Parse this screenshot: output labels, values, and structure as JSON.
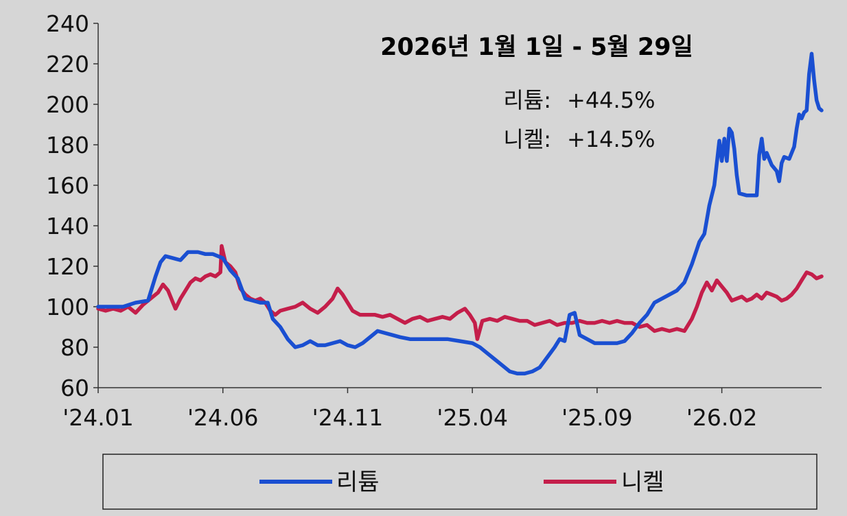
{
  "chart_data": {
    "type": "line",
    "title": "2026년 1월 1일  -  5월 29일",
    "annotations": [
      {
        "label": "리튬:",
        "value": "+44.5%"
      },
      {
        "label": "니켈:",
        "value": "+14.5%"
      }
    ],
    "ylim": [
      60,
      240
    ],
    "yticks": [
      60,
      80,
      100,
      120,
      140,
      160,
      180,
      200,
      220,
      240
    ],
    "xlim": [
      0,
      29
    ],
    "xticks": [
      {
        "pos": 0,
        "label": "'24.01"
      },
      {
        "pos": 5,
        "label": "'24.06"
      },
      {
        "pos": 10,
        "label": "'24.11"
      },
      {
        "pos": 15,
        "label": "'25.04"
      },
      {
        "pos": 20,
        "label": "'25.09"
      },
      {
        "pos": 25,
        "label": "'26.02"
      }
    ],
    "legend_position": "bottom",
    "grid": false,
    "series": [
      {
        "name": "리튬",
        "color": "#1a4fd1",
        "points": [
          [
            0.0,
            100
          ],
          [
            1.0,
            100
          ],
          [
            1.5,
            102
          ],
          [
            2.0,
            103
          ],
          [
            2.3,
            115
          ],
          [
            2.5,
            122
          ],
          [
            2.7,
            125
          ],
          [
            3.0,
            124
          ],
          [
            3.3,
            123
          ],
          [
            3.6,
            127
          ],
          [
            4.0,
            127
          ],
          [
            4.3,
            126
          ],
          [
            4.6,
            126
          ],
          [
            5.0,
            124
          ],
          [
            5.3,
            118
          ],
          [
            5.6,
            114
          ],
          [
            5.9,
            104
          ],
          [
            6.2,
            103
          ],
          [
            6.5,
            102
          ],
          [
            6.8,
            102
          ],
          [
            7.0,
            94
          ],
          [
            7.3,
            90
          ],
          [
            7.6,
            84
          ],
          [
            7.9,
            80
          ],
          [
            8.2,
            81
          ],
          [
            8.5,
            83
          ],
          [
            8.8,
            81
          ],
          [
            9.1,
            81
          ],
          [
            9.4,
            82
          ],
          [
            9.7,
            83
          ],
          [
            10.0,
            81
          ],
          [
            10.3,
            80
          ],
          [
            10.6,
            82
          ],
          [
            10.9,
            85
          ],
          [
            11.2,
            88
          ],
          [
            11.5,
            87
          ],
          [
            11.8,
            86
          ],
          [
            12.1,
            85
          ],
          [
            12.5,
            84
          ],
          [
            13.0,
            84
          ],
          [
            13.5,
            84
          ],
          [
            14.0,
            84
          ],
          [
            14.5,
            83
          ],
          [
            15.0,
            82
          ],
          [
            15.3,
            80
          ],
          [
            15.6,
            77
          ],
          [
            15.9,
            74
          ],
          [
            16.2,
            71
          ],
          [
            16.5,
            68
          ],
          [
            16.8,
            67
          ],
          [
            17.1,
            67
          ],
          [
            17.4,
            68
          ],
          [
            17.7,
            70
          ],
          [
            18.0,
            75
          ],
          [
            18.3,
            80
          ],
          [
            18.5,
            84
          ],
          [
            18.7,
            83
          ],
          [
            18.9,
            96
          ],
          [
            19.1,
            97
          ],
          [
            19.3,
            86
          ],
          [
            19.6,
            84
          ],
          [
            19.9,
            82
          ],
          [
            20.2,
            82
          ],
          [
            20.5,
            82
          ],
          [
            20.8,
            82
          ],
          [
            21.1,
            83
          ],
          [
            21.4,
            87
          ],
          [
            21.7,
            92
          ],
          [
            22.0,
            96
          ],
          [
            22.3,
            102
          ],
          [
            22.6,
            104
          ],
          [
            22.9,
            106
          ],
          [
            23.2,
            108
          ],
          [
            23.5,
            112
          ],
          [
            23.8,
            121
          ],
          [
            24.1,
            132
          ],
          [
            24.3,
            136
          ],
          [
            24.5,
            150
          ],
          [
            24.7,
            160
          ],
          [
            24.9,
            182
          ],
          [
            25.0,
            172
          ],
          [
            25.1,
            183
          ],
          [
            25.2,
            172
          ],
          [
            25.3,
            188
          ],
          [
            25.4,
            186
          ],
          [
            25.5,
            178
          ],
          [
            25.6,
            165
          ],
          [
            25.7,
            156
          ],
          [
            26.0,
            155
          ],
          [
            26.2,
            155
          ],
          [
            26.4,
            155
          ],
          [
            26.5,
            175
          ],
          [
            26.6,
            183
          ],
          [
            26.7,
            173
          ],
          [
            26.8,
            176
          ],
          [
            27.0,
            170
          ],
          [
            27.2,
            167
          ],
          [
            27.3,
            162
          ],
          [
            27.4,
            171
          ],
          [
            27.5,
            174
          ],
          [
            27.7,
            173
          ],
          [
            27.9,
            179
          ],
          [
            28.0,
            188
          ],
          [
            28.1,
            195
          ],
          [
            28.2,
            193
          ],
          [
            28.3,
            196
          ],
          [
            28.4,
            197
          ],
          [
            28.5,
            215
          ],
          [
            28.6,
            225
          ],
          [
            28.7,
            212
          ],
          [
            28.8,
            202
          ],
          [
            28.9,
            198
          ],
          [
            29.0,
            197
          ]
        ]
      },
      {
        "name": "니켈",
        "color": "#c41e4a",
        "points": [
          [
            0.0,
            99
          ],
          [
            0.3,
            98
          ],
          [
            0.6,
            99
          ],
          [
            0.9,
            98
          ],
          [
            1.2,
            100
          ],
          [
            1.5,
            97
          ],
          [
            1.8,
            101
          ],
          [
            2.1,
            104
          ],
          [
            2.4,
            107
          ],
          [
            2.6,
            111
          ],
          [
            2.8,
            108
          ],
          [
            3.0,
            102
          ],
          [
            3.1,
            99
          ],
          [
            3.3,
            104
          ],
          [
            3.5,
            108
          ],
          [
            3.7,
            112
          ],
          [
            3.9,
            114
          ],
          [
            4.1,
            113
          ],
          [
            4.3,
            115
          ],
          [
            4.5,
            116
          ],
          [
            4.7,
            115
          ],
          [
            4.9,
            117
          ],
          [
            4.95,
            130
          ],
          [
            5.1,
            122
          ],
          [
            5.3,
            120
          ],
          [
            5.5,
            117
          ],
          [
            5.7,
            109
          ],
          [
            5.9,
            106
          ],
          [
            6.1,
            104
          ],
          [
            6.3,
            103
          ],
          [
            6.5,
            104
          ],
          [
            6.7,
            102
          ],
          [
            6.9,
            98
          ],
          [
            7.1,
            96
          ],
          [
            7.3,
            98
          ],
          [
            7.6,
            99
          ],
          [
            7.9,
            100
          ],
          [
            8.2,
            102
          ],
          [
            8.5,
            99
          ],
          [
            8.8,
            97
          ],
          [
            9.1,
            100
          ],
          [
            9.4,
            104
          ],
          [
            9.6,
            109
          ],
          [
            9.8,
            106
          ],
          [
            10.0,
            102
          ],
          [
            10.2,
            98
          ],
          [
            10.5,
            96
          ],
          [
            10.8,
            96
          ],
          [
            11.1,
            96
          ],
          [
            11.4,
            95
          ],
          [
            11.7,
            96
          ],
          [
            12.0,
            94
          ],
          [
            12.3,
            92
          ],
          [
            12.6,
            94
          ],
          [
            12.9,
            95
          ],
          [
            13.2,
            93
          ],
          [
            13.5,
            94
          ],
          [
            13.8,
            95
          ],
          [
            14.1,
            94
          ],
          [
            14.4,
            97
          ],
          [
            14.7,
            99
          ],
          [
            14.9,
            96
          ],
          [
            15.1,
            92
          ],
          [
            15.2,
            84
          ],
          [
            15.4,
            93
          ],
          [
            15.7,
            94
          ],
          [
            16.0,
            93
          ],
          [
            16.3,
            95
          ],
          [
            16.6,
            94
          ],
          [
            16.9,
            93
          ],
          [
            17.2,
            93
          ],
          [
            17.5,
            91
          ],
          [
            17.8,
            92
          ],
          [
            18.1,
            93
          ],
          [
            18.4,
            91
          ],
          [
            18.7,
            92
          ],
          [
            19.0,
            92
          ],
          [
            19.3,
            93
          ],
          [
            19.6,
            92
          ],
          [
            19.9,
            92
          ],
          [
            20.2,
            93
          ],
          [
            20.5,
            92
          ],
          [
            20.8,
            93
          ],
          [
            21.1,
            92
          ],
          [
            21.4,
            92
          ],
          [
            21.7,
            90
          ],
          [
            22.0,
            91
          ],
          [
            22.3,
            88
          ],
          [
            22.6,
            89
          ],
          [
            22.9,
            88
          ],
          [
            23.2,
            89
          ],
          [
            23.5,
            88
          ],
          [
            23.8,
            94
          ],
          [
            24.0,
            100
          ],
          [
            24.2,
            107
          ],
          [
            24.4,
            112
          ],
          [
            24.6,
            108
          ],
          [
            24.8,
            113
          ],
          [
            25.0,
            110
          ],
          [
            25.2,
            107
          ],
          [
            25.4,
            103
          ],
          [
            25.6,
            104
          ],
          [
            25.8,
            105
          ],
          [
            26.0,
            103
          ],
          [
            26.2,
            104
          ],
          [
            26.4,
            106
          ],
          [
            26.6,
            104
          ],
          [
            26.8,
            107
          ],
          [
            27.0,
            106
          ],
          [
            27.2,
            105
          ],
          [
            27.4,
            103
          ],
          [
            27.6,
            104
          ],
          [
            27.8,
            106
          ],
          [
            28.0,
            109
          ],
          [
            28.2,
            113
          ],
          [
            28.4,
            117
          ],
          [
            28.6,
            116
          ],
          [
            28.8,
            114
          ],
          [
            29.0,
            115
          ]
        ]
      }
    ]
  }
}
